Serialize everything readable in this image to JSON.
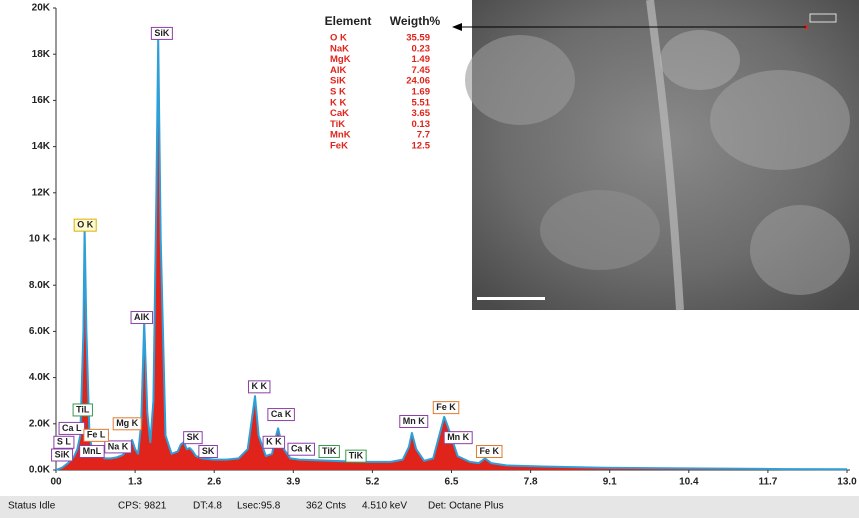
{
  "chart_data": {
    "type": "line",
    "x": [
      0,
      0.1,
      0.2,
      0.3,
      0.35,
      0.4,
      0.45,
      0.47,
      0.5,
      0.55,
      0.6,
      0.65,
      0.7,
      0.75,
      0.8,
      0.9,
      1.0,
      1.1,
      1.2,
      1.25,
      1.3,
      1.35,
      1.4,
      1.45,
      1.5,
      1.55,
      1.6,
      1.65,
      1.68,
      1.72,
      1.8,
      1.9,
      2.0,
      2.05,
      2.1,
      2.15,
      2.2,
      2.25,
      2.3,
      2.4,
      2.6,
      2.8,
      3.0,
      3.15,
      3.22,
      3.27,
      3.33,
      3.45,
      3.55,
      3.6,
      3.65,
      3.72,
      3.85,
      4.0,
      4.5,
      5.0,
      5.5,
      5.7,
      5.8,
      5.85,
      5.92,
      6.05,
      6.2,
      6.3,
      6.38,
      6.45,
      6.6,
      6.8,
      6.95,
      7.05,
      7.15,
      7.4,
      8,
      9,
      10,
      11,
      12,
      13
    ],
    "series": [
      {
        "color": "#2f9fd8",
        "fill": "#e0241b",
        "values": [
          0,
          100,
          300,
          600,
          900,
          1500,
          6000,
          10500,
          6000,
          1500,
          800,
          700,
          800,
          600,
          500,
          500,
          550,
          650,
          1000,
          1300,
          900,
          700,
          2000,
          6400,
          2500,
          1200,
          3000,
          12000,
          18700,
          10000,
          1500,
          700,
          800,
          1100,
          1200,
          900,
          950,
          800,
          600,
          500,
          450,
          450,
          500,
          900,
          2200,
          3200,
          1500,
          600,
          700,
          1300,
          1800,
          1000,
          500,
          450,
          400,
          350,
          350,
          450,
          1000,
          1600,
          900,
          400,
          500,
          1500,
          2300,
          1800,
          600,
          350,
          300,
          500,
          300,
          200,
          150,
          100,
          80,
          60,
          40,
          30
        ]
      }
    ],
    "xlim": [
      0,
      13
    ],
    "ylim": [
      0,
      20000
    ],
    "xticks": [
      {
        "value": 0,
        "label": "00"
      },
      1.3,
      2.6,
      3.9,
      5.2,
      6.5,
      7.8,
      9.1,
      10.4,
      11.7,
      {
        "value": 13,
        "label": "13.0"
      }
    ],
    "yticks": [
      {
        "value": 0,
        "label": "0.0K"
      },
      {
        "value": 2000,
        "label": "2.0K"
      },
      {
        "value": 4000,
        "label": "4.0K"
      },
      {
        "value": 6000,
        "label": "6.0K"
      },
      {
        "value": 8000,
        "label": "8.0K"
      },
      {
        "value": 10000,
        "label": "10 K"
      },
      {
        "value": 12000,
        "label": "12K"
      },
      {
        "value": 14000,
        "label": "14K"
      },
      {
        "value": 16000,
        "label": "16K"
      },
      {
        "value": 18000,
        "label": "18K"
      },
      {
        "value": 20000,
        "label": "20K"
      }
    ],
    "peak_labels": [
      {
        "text": "SiK",
        "x": 1.74,
        "y": 18900,
        "color": "#8b3fa8"
      },
      {
        "text": "O K",
        "x": 0.48,
        "y": 10600,
        "color": "#d9b200"
      },
      {
        "text": "AlK",
        "x": 1.41,
        "y": 6600,
        "color": "#8b3fa8"
      },
      {
        "text": "Mg K",
        "x": 1.17,
        "y": 2000,
        "color": "#e07a30"
      },
      {
        "text": "Na K",
        "x": 1.02,
        "y": 1000,
        "color": "#8b3fa8"
      },
      {
        "text": "TiL",
        "x": 0.44,
        "y": 2600,
        "color": "#3a9a4a"
      },
      {
        "text": "Ca L",
        "x": 0.26,
        "y": 1800,
        "color": "#8b3fa8"
      },
      {
        "text": "Fe L",
        "x": 0.66,
        "y": 1500,
        "color": "#e07a30"
      },
      {
        "text": "S L",
        "x": 0.13,
        "y": 1200,
        "color": "#8b3fa8"
      },
      {
        "text": "MnL",
        "x": 0.59,
        "y": 800,
        "color": "#8b3fa8"
      },
      {
        "text": "SiK",
        "x": 0.1,
        "y": 650,
        "color": "#8b3fa8"
      },
      {
        "text": "SK",
        "x": 2.25,
        "y": 1400,
        "color": "#8b3fa8"
      },
      {
        "text": "SK",
        "x": 2.5,
        "y": 800,
        "color": "#8b3fa8"
      },
      {
        "text": "K K",
        "x": 3.34,
        "y": 3600,
        "color": "#8b3fa8"
      },
      {
        "text": "Ca K",
        "x": 3.7,
        "y": 2400,
        "color": "#8b3fa8"
      },
      {
        "text": "K K",
        "x": 3.58,
        "y": 1200,
        "color": "#8b3fa8"
      },
      {
        "text": "Ca K",
        "x": 4.03,
        "y": 900,
        "color": "#8b3fa8"
      },
      {
        "text": "TiK",
        "x": 4.49,
        "y": 800,
        "color": "#3a9a4a"
      },
      {
        "text": "TiK",
        "x": 4.93,
        "y": 600,
        "color": "#3a9a4a"
      },
      {
        "text": "Mn K",
        "x": 5.88,
        "y": 2100,
        "color": "#8b3fa8"
      },
      {
        "text": "Fe K",
        "x": 6.41,
        "y": 2700,
        "color": "#e07a30"
      },
      {
        "text": "Mn K",
        "x": 6.61,
        "y": 1400,
        "color": "#8b3fa8"
      },
      {
        "text": "Fe K",
        "x": 7.12,
        "y": 800,
        "color": "#e07a30"
      }
    ],
    "table": {
      "header": [
        "Element",
        "Weigth%"
      ],
      "color": "#e0241b",
      "rows": [
        [
          "O K",
          35.59
        ],
        [
          "NaK",
          0.23
        ],
        [
          "MgK",
          1.49
        ],
        [
          "AlK",
          7.45
        ],
        [
          "SiK",
          24.06
        ],
        [
          "S K",
          1.69
        ],
        [
          "K K",
          5.51
        ],
        [
          "CaK",
          3.65
        ],
        [
          "TiK",
          0.13
        ],
        [
          "MnK",
          7.7
        ],
        [
          "FeK",
          12.5
        ]
      ]
    }
  },
  "status_bar": [
    "Status Idle",
    "CPS: 9821",
    "DT:4.8",
    "Lsec:95.8",
    "362 Cnts",
    "4.510 keV",
    "Det: Octane Plus"
  ]
}
